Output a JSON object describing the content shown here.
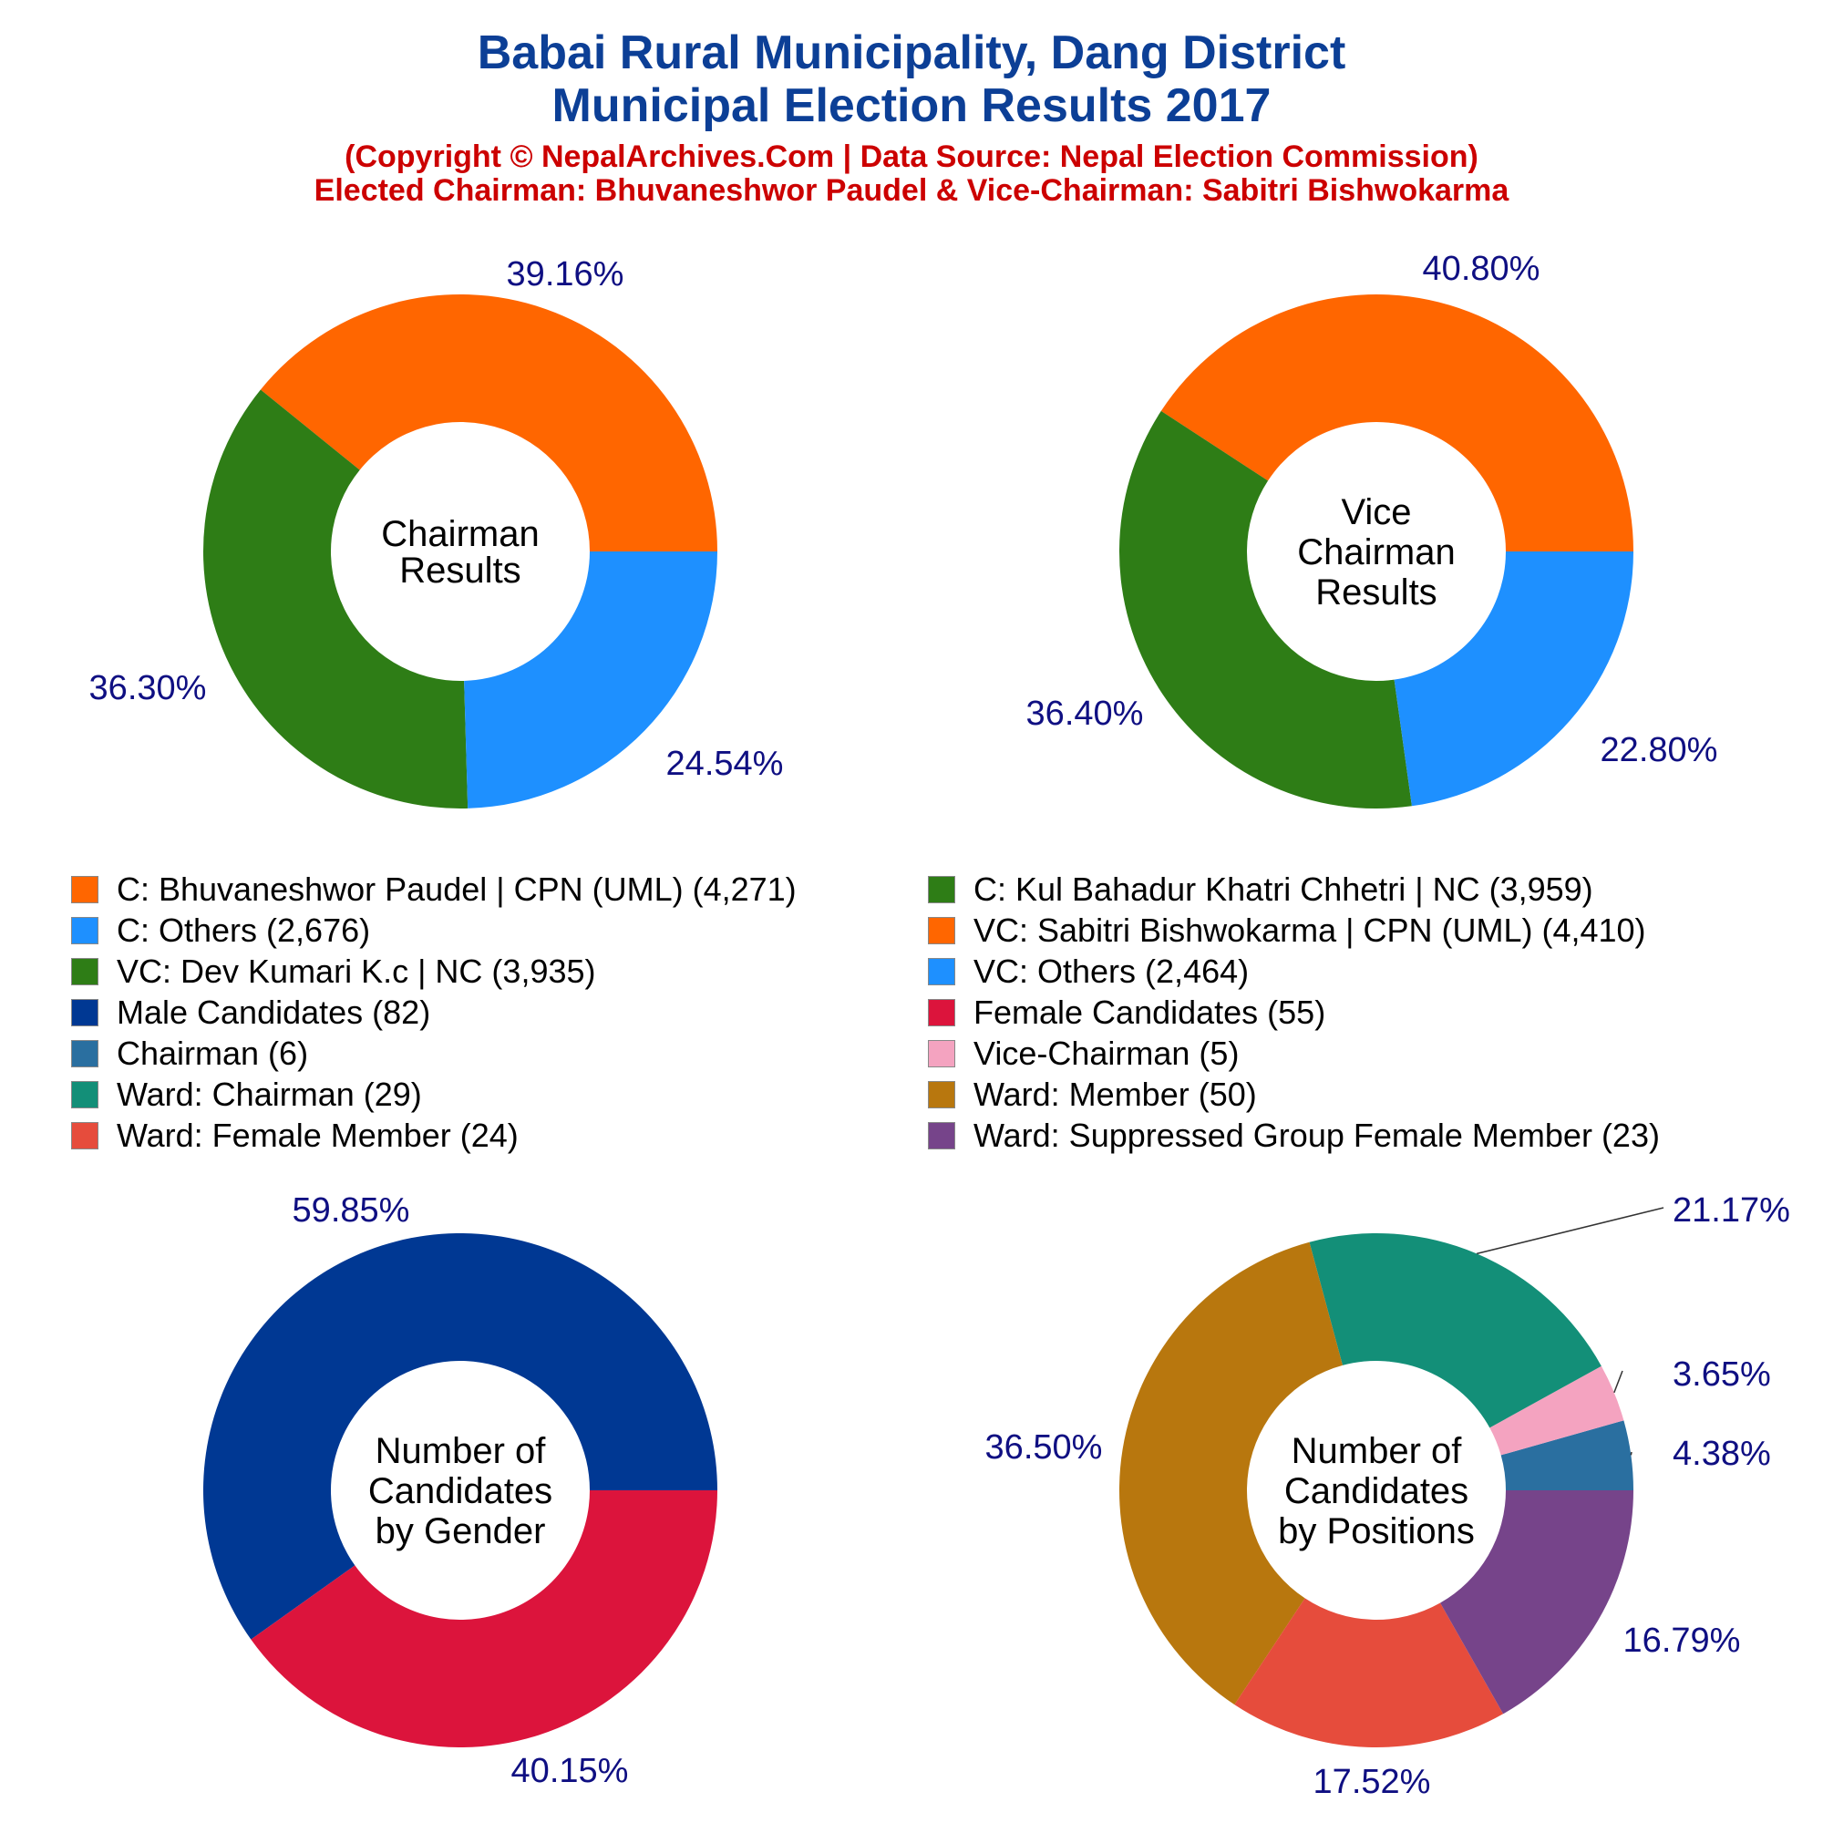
{
  "header": {
    "title_line1": "Babai Rural Municipality, Dang District",
    "title_line2": "Municipal Election Results 2017",
    "subtitle_line1": "(Copyright © NepalArchives.Com | Data Source: Nepal Election Commission)",
    "subtitle_line2": "Elected Chairman: Bhuvaneshwor Paudel & Vice-Chairman: Sabitri Bishwokarma"
  },
  "chart_data": [
    {
      "type": "pie",
      "center_label": [
        "Chairman",
        "Results"
      ],
      "slices": [
        {
          "label": "C: Bhuvaneshwor Paudel | CPN (UML)",
          "value": 4271,
          "percent": "39.16%",
          "color": "#ff6600"
        },
        {
          "label": "C: Kul Bahadur Khatri Chhetri | NC",
          "value": 3959,
          "percent": "36.30%",
          "color": "#2e7d16"
        },
        {
          "label": "C: Others",
          "value": 2676,
          "percent": "24.54%",
          "color": "#1e90ff"
        }
      ]
    },
    {
      "type": "pie",
      "center_label": [
        "Vice",
        "Chairman",
        "Results"
      ],
      "slices": [
        {
          "label": "VC: Sabitri Bishwokarma | CPN (UML)",
          "value": 4410,
          "percent": "40.80%",
          "color": "#ff6600"
        },
        {
          "label": "VC: Dev Kumari K.c | NC",
          "value": 3935,
          "percent": "36.40%",
          "color": "#2e7d16"
        },
        {
          "label": "VC: Others",
          "value": 2464,
          "percent": "22.80%",
          "color": "#1e90ff"
        }
      ]
    },
    {
      "type": "pie",
      "center_label": [
        "Number of",
        "Candidates",
        "by Gender"
      ],
      "slices": [
        {
          "label": "Male Candidates",
          "value": 82,
          "percent": "59.85%",
          "color": "#003893"
        },
        {
          "label": "Female Candidates",
          "value": 55,
          "percent": "40.15%",
          "color": "#dc143c"
        }
      ]
    },
    {
      "type": "pie",
      "center_label": [
        "Number of",
        "Candidates",
        "by Positions"
      ],
      "slices": [
        {
          "label": "Chairman",
          "value": 6,
          "percent": "4.38%",
          "color": "#2a6fa0"
        },
        {
          "label": "Vice-Chairman",
          "value": 5,
          "percent": "3.65%",
          "color": "#f4a3c0"
        },
        {
          "label": "Ward: Chairman",
          "value": 29,
          "percent": "21.17%",
          "color": "#138f78"
        },
        {
          "label": "Ward: Member",
          "value": 50,
          "percent": "36.50%",
          "color": "#b8770e"
        },
        {
          "label": "Ward: Female Member",
          "value": 24,
          "percent": "17.52%",
          "color": "#e64c3c"
        },
        {
          "label": "Ward: Suppressed Group Female Member",
          "value": 23,
          "percent": "16.79%",
          "color": "#76448a"
        }
      ]
    }
  ],
  "legend": [
    {
      "text": "C: Bhuvaneshwor Paudel | CPN (UML) (4,271)",
      "color": "#ff6600"
    },
    {
      "text": "C: Kul Bahadur Khatri Chhetri | NC (3,959)",
      "color": "#2e7d16"
    },
    {
      "text": "C: Others (2,676)",
      "color": "#1e90ff"
    },
    {
      "text": "VC: Sabitri Bishwokarma | CPN (UML) (4,410)",
      "color": "#ff6600"
    },
    {
      "text": "VC: Dev Kumari K.c | NC (3,935)",
      "color": "#2e7d16"
    },
    {
      "text": "VC: Others (2,464)",
      "color": "#1e90ff"
    },
    {
      "text": "Male Candidates (82)",
      "color": "#003893"
    },
    {
      "text": "Female Candidates (55)",
      "color": "#dc143c"
    },
    {
      "text": "Chairman (6)",
      "color": "#2a6fa0"
    },
    {
      "text": "Vice-Chairman (5)",
      "color": "#f4a3c0"
    },
    {
      "text": "Ward: Chairman (29)",
      "color": "#138f78"
    },
    {
      "text": "Ward: Member (50)",
      "color": "#b8770e"
    },
    {
      "text": "Ward: Female Member (24)",
      "color": "#e64c3c"
    },
    {
      "text": "Ward: Suppressed Group Female Member (23)",
      "color": "#76448a"
    }
  ]
}
